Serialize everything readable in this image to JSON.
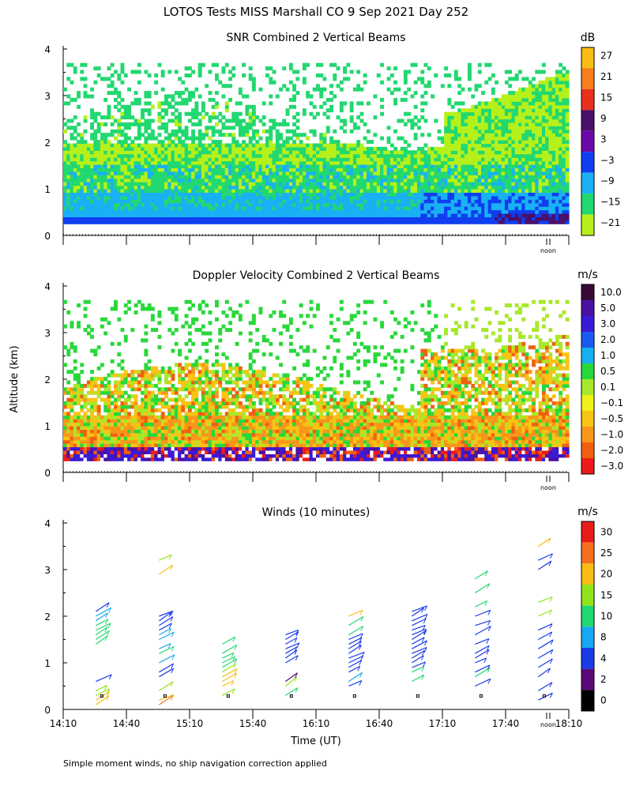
{
  "title": "LOTOS Tests MISS Marshall CO   9 Sep 2021 Day 252",
  "ylabel": "Altitude (km)",
  "xlabel": "Time (UT)",
  "footnote": "Simple moment winds, no ship navigation correction applied",
  "noon_label": "noon",
  "chart_data": [
    {
      "type": "heatmap",
      "title": "SNR Combined 2 Vertical Beams",
      "ylabel": "Altitude (km)",
      "ylim": [
        0,
        4
      ],
      "yticks": [
        "0",
        "1",
        "2",
        "3",
        "4"
      ],
      "xlim": [
        14.1667,
        18.1667
      ],
      "colorbar": {
        "unit": "dB",
        "labels": [
          "27",
          "21",
          "15",
          "9",
          "3",
          "−3",
          "−9",
          "−15",
          "−21"
        ],
        "colors": [
          "#f9bc14",
          "#f77e1c",
          "#e8301c",
          "#4a106a",
          "#6a0aa8",
          "#0f3ef0",
          "#1ab0f4",
          "#22d870",
          "#b6f01a"
        ]
      }
    },
    {
      "type": "heatmap",
      "title": "Doppler Velocity Combined 2 Vertical Beams",
      "ylabel": "Altitude (km)",
      "ylim": [
        0,
        4
      ],
      "yticks": [
        "0",
        "1",
        "2",
        "3",
        "4"
      ],
      "xlim": [
        14.1667,
        18.1667
      ],
      "colorbar": {
        "unit": "m/s",
        "labels": [
          "10.0",
          "5.0",
          "3.0",
          "2.0",
          "1.0",
          "0.5",
          "0.1",
          "−0.1",
          "−0.5",
          "−1.0",
          "−2.0",
          "−3.0"
        ],
        "colors": [
          "#3a0a36",
          "#4a12a2",
          "#3a1ad8",
          "#1a5af0",
          "#16b0f0",
          "#28d83a",
          "#a8e82a",
          "#f2f01a",
          "#f8c414",
          "#f8961a",
          "#f06010",
          "#ee1a1a"
        ]
      }
    },
    {
      "type": "scatter",
      "title": "Winds (10 minutes)",
      "ylabel": "Altitude (km)",
      "xlabel": "Time (UT)",
      "ylim": [
        0,
        4
      ],
      "yticks": [
        "0",
        "1",
        "2",
        "3",
        "4"
      ],
      "xlim": [
        14.1667,
        18.1667
      ],
      "xticks": [
        "14:10",
        "14:40",
        "15:10",
        "15:40",
        "16:10",
        "16:40",
        "17:10",
        "17:40",
        "18:10"
      ],
      "colorbar": {
        "unit": "m/s",
        "labels": [
          "30",
          "25",
          "20",
          "15",
          "10",
          "8",
          "4",
          "2",
          "0"
        ],
        "colors": [
          "#e81a1a",
          "#f5701c",
          "#f9bc14",
          "#92e41a",
          "#22d870",
          "#16a8f0",
          "#1a3ae8",
          "#5a0a78",
          "#000000"
        ]
      },
      "profiles": [
        {
          "time": 14.5,
          "alts": [
            0.1,
            0.2,
            0.3,
            0.4,
            0.6,
            1.4,
            1.5,
            1.6,
            1.7,
            1.8,
            1.9,
            2.0,
            2.1
          ],
          "speeds": [
            20,
            22,
            18,
            16,
            4,
            12,
            12,
            11,
            10,
            10,
            9,
            8,
            6
          ]
        },
        {
          "time": 15.0,
          "alts": [
            0.1,
            0.2,
            0.4,
            0.7,
            0.8,
            1.0,
            1.2,
            1.3,
            1.5,
            1.6,
            1.7,
            1.8,
            1.9,
            2.0,
            2.9,
            3.2
          ],
          "speeds": [
            25,
            22,
            18,
            6,
            5,
            8,
            10,
            9,
            9,
            8,
            7,
            6,
            6,
            5,
            20,
            16
          ]
        },
        {
          "time": 15.5,
          "alts": [
            0.3,
            0.5,
            0.6,
            0.7,
            0.8,
            0.9,
            1.0,
            1.1,
            1.2,
            1.4
          ],
          "speeds": [
            18,
            20,
            24,
            22,
            16,
            10,
            10,
            10,
            10,
            12
          ]
        },
        {
          "time": 16.0,
          "alts": [
            0.3,
            0.5,
            0.6,
            1.0,
            1.1,
            1.2,
            1.3,
            1.4,
            1.5,
            1.6
          ],
          "speeds": [
            14,
            18,
            3,
            6,
            6,
            6,
            6,
            6,
            6,
            6
          ]
        },
        {
          "time": 16.5,
          "alts": [
            0.5,
            0.6,
            0.8,
            0.9,
            1.0,
            1.1,
            1.2,
            1.3,
            1.4,
            1.5,
            1.6,
            1.8,
            2.0
          ],
          "speeds": [
            6,
            8,
            6,
            6,
            6,
            6,
            6,
            6,
            6,
            7,
            10,
            14,
            22
          ]
        },
        {
          "time": 17.0,
          "alts": [
            0.6,
            0.8,
            0.9,
            1.0,
            1.1,
            1.2,
            1.3,
            1.4,
            1.5,
            1.6,
            1.7,
            1.8,
            1.9,
            2.0,
            2.1
          ],
          "speeds": [
            12,
            10,
            6,
            6,
            6,
            6,
            6,
            6,
            6,
            6,
            6,
            6,
            6,
            6,
            6
          ]
        },
        {
          "time": 17.5,
          "alts": [
            0.5,
            0.7,
            0.8,
            1.0,
            1.1,
            1.2,
            1.4,
            1.6,
            1.8,
            2.0,
            2.2,
            2.5,
            2.8
          ],
          "speeds": [
            4,
            12,
            6,
            6,
            6,
            6,
            6,
            6,
            6,
            6,
            10,
            12,
            10
          ]
        },
        {
          "time": 18.0,
          "alts": [
            0.2,
            0.4,
            0.7,
            0.9,
            1.1,
            1.3,
            1.5,
            1.7,
            2.0,
            2.3,
            3.0,
            3.2,
            3.5
          ],
          "speeds": [
            6,
            6,
            5,
            6,
            6,
            6,
            6,
            6,
            16,
            18,
            6,
            6,
            24
          ]
        }
      ]
    }
  ]
}
